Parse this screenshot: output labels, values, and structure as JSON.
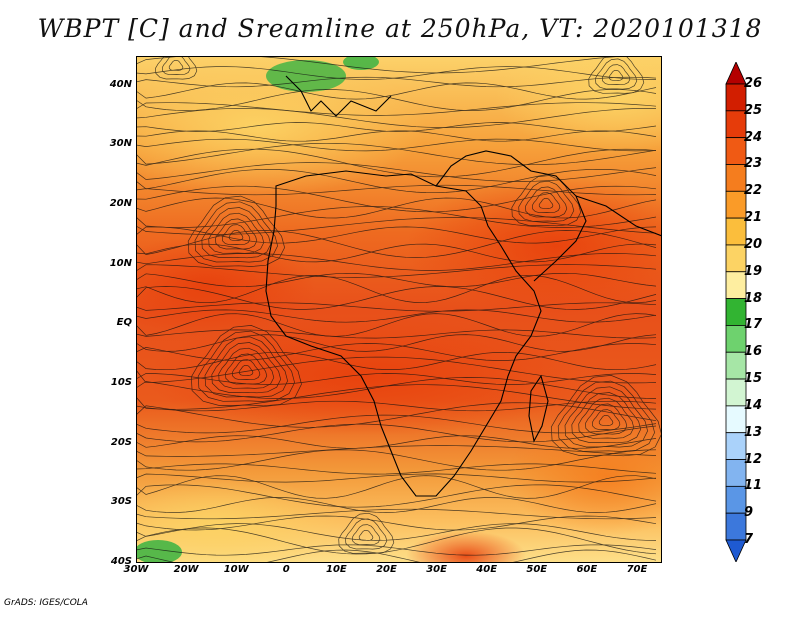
{
  "title": "WBPT [C] and Sreamline at 250hPa, VT: 2020101318",
  "footer": "GrADS: IGES/COLA",
  "map": {
    "lon_range": [
      -30,
      75
    ],
    "lat_range": [
      -40,
      45
    ],
    "y_ticks": [
      {
        "lat": 40,
        "label": "40N"
      },
      {
        "lat": 30,
        "label": "30N"
      },
      {
        "lat": 20,
        "label": "20N"
      },
      {
        "lat": 10,
        "label": "10N"
      },
      {
        "lat": 0,
        "label": "EQ"
      },
      {
        "lat": -10,
        "label": "10S"
      },
      {
        "lat": -20,
        "label": "20S"
      },
      {
        "lat": -30,
        "label": "30S"
      },
      {
        "lat": -40,
        "label": "40S"
      }
    ],
    "x_ticks": [
      {
        "lon": -30,
        "label": "30W"
      },
      {
        "lon": -20,
        "label": "20W"
      },
      {
        "lon": -10,
        "label": "10W"
      },
      {
        "lon": 0,
        "label": "0"
      },
      {
        "lon": 10,
        "label": "10E"
      },
      {
        "lon": 20,
        "label": "20E"
      },
      {
        "lon": 30,
        "label": "30E"
      },
      {
        "lon": 40,
        "label": "40E"
      },
      {
        "lon": 50,
        "label": "50E"
      },
      {
        "lon": 60,
        "label": "60E"
      },
      {
        "lon": 70,
        "label": "70E"
      }
    ]
  },
  "colorbar": {
    "labels": [
      "26",
      "25",
      "24",
      "23",
      "22",
      "21",
      "20",
      "19",
      "18",
      "17",
      "16",
      "15",
      "14",
      "13",
      "12",
      "11",
      "9",
      "7"
    ],
    "colors": [
      "#b40000",
      "#d21e00",
      "#e63c0a",
      "#f05a14",
      "#f57d1e",
      "#fa9b28",
      "#fbbe3c",
      "#fcd364",
      "#feeea0",
      "#32b432",
      "#6ed26e",
      "#a6e6a6",
      "#d2f5d2",
      "#e6faff",
      "#aad2fa",
      "#82b4f0",
      "#5a96e6",
      "#3c78dc",
      "#1e5ad2"
    ]
  }
}
